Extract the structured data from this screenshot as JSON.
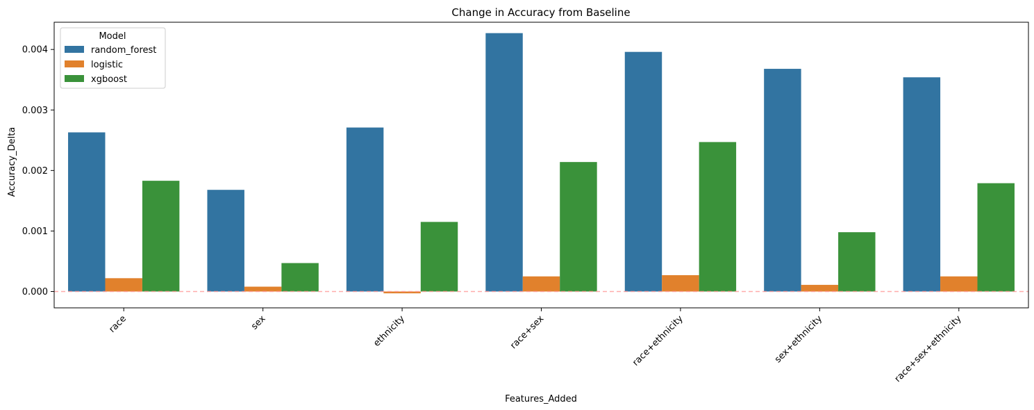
{
  "chart_data": {
    "type": "bar",
    "title": "Change in Accuracy from Baseline",
    "xlabel": "Features_Added",
    "ylabel": "Accuracy_Delta",
    "categories": [
      "race",
      "sex",
      "ethnicity",
      "race+sex",
      "race+ethnicity",
      "sex+ethnicity",
      "race+sex+ethnicity"
    ],
    "series": [
      {
        "name": "random_forest",
        "color": "#3274a1",
        "values": [
          0.00263,
          0.00168,
          0.00271,
          0.00427,
          0.00396,
          0.00368,
          0.00354
        ]
      },
      {
        "name": "logistic",
        "color": "#e1812c",
        "values": [
          0.00022,
          8e-05,
          -3e-05,
          0.00025,
          0.00027,
          0.00011,
          0.00025
        ]
      },
      {
        "name": "xgboost",
        "color": "#3a923a",
        "values": [
          0.00183,
          0.00047,
          0.00115,
          0.00214,
          0.00247,
          0.00098,
          0.00179
        ]
      }
    ],
    "ylim": [
      -0.00027,
      0.00445
    ],
    "yticks": [
      "0.000",
      "0.001",
      "0.002",
      "0.003",
      "0.004"
    ],
    "ytick_values": [
      0,
      0.001,
      0.002,
      0.003,
      0.004
    ],
    "legend": {
      "title": "Model",
      "placement": "top-left"
    },
    "reference_line": {
      "y": 0,
      "color": "#ff9896",
      "style": "dashed"
    },
    "grid": false
  }
}
